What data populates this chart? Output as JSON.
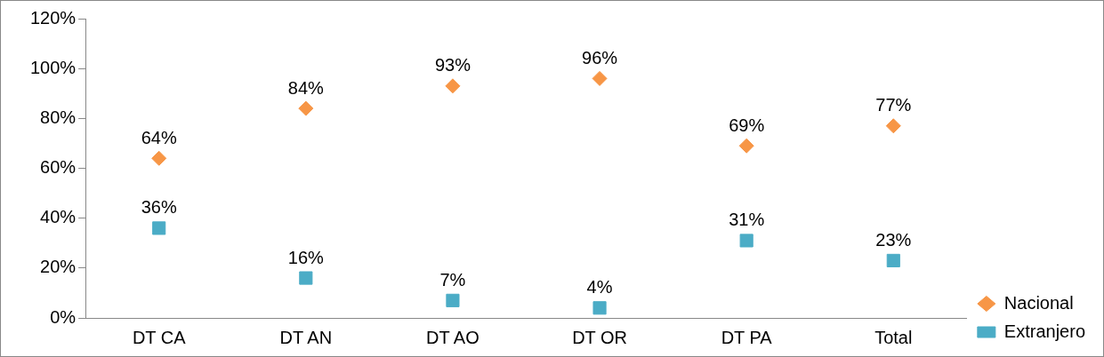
{
  "chart_data": {
    "type": "scatter",
    "categories": [
      "DT CA",
      "DT AN",
      "DT AO",
      "DT OR",
      "DT PA",
      "Total"
    ],
    "series": [
      {
        "name": "Nacional",
        "color": "#f79646",
        "marker": "diamond",
        "values": [
          64,
          84,
          93,
          96,
          69,
          77
        ],
        "value_labels": [
          "64%",
          "84%",
          "93%",
          "96%",
          "69%",
          "77%"
        ]
      },
      {
        "name": "Extranjero",
        "color": "#4bacc6",
        "marker": "square",
        "values": [
          36,
          16,
          7,
          4,
          31,
          23
        ],
        "value_labels": [
          "36%",
          "16%",
          "7%",
          "4%",
          "31%",
          "23%"
        ]
      }
    ],
    "ylim": [
      0,
      120
    ],
    "yticks": [
      {
        "value": 0,
        "label": "0%"
      },
      {
        "value": 20,
        "label": "20%"
      },
      {
        "value": 40,
        "label": "40%"
      },
      {
        "value": 60,
        "label": "60%"
      },
      {
        "value": 80,
        "label": "80%"
      },
      {
        "value": 100,
        "label": "100%"
      },
      {
        "value": 120,
        "label": "120%"
      }
    ],
    "grid": false,
    "legend": "bottom right"
  }
}
